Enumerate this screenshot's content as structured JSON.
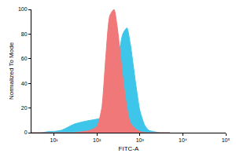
{
  "chart_data": {
    "type": "area",
    "x_label": "FITC-A",
    "y_label": "Normalized To Mode",
    "log": "x",
    "grid": false,
    "x": [
      3,
      5,
      8,
      10,
      15,
      20,
      30,
      50,
      70,
      100,
      130,
      160,
      200,
      250,
      300,
      400,
      500,
      600,
      800,
      1000,
      1300,
      1600,
      2000,
      3000,
      5000
    ],
    "series": [
      {
        "color": "#3ec6ea",
        "values": [
          0,
          0,
          1,
          1,
          2,
          4,
          7,
          9,
          10,
          11,
          12,
          14,
          20,
          35,
          55,
          80,
          85,
          72,
          40,
          18,
          6,
          2,
          1,
          0,
          0
        ]
      },
      {
        "color": "#f07878",
        "values": [
          0,
          0,
          0,
          0,
          0,
          0,
          0,
          1,
          2,
          5,
          20,
          60,
          95,
          100,
          85,
          45,
          20,
          8,
          3,
          1,
          0,
          0,
          0,
          0,
          0
        ]
      }
    ],
    "xlim": [
      3,
      100000
    ],
    "xticks": [
      {
        "value": 10,
        "label": "10¹"
      },
      {
        "value": 100,
        "label": "10²"
      },
      {
        "value": 1000,
        "label": "10³"
      },
      {
        "value": 10000,
        "label": "10⁴"
      },
      {
        "value": 100000,
        "label": "10⁵"
      }
    ],
    "ylim": [
      0,
      100
    ],
    "yticks": [
      0,
      20,
      40,
      60,
      80,
      100
    ]
  }
}
